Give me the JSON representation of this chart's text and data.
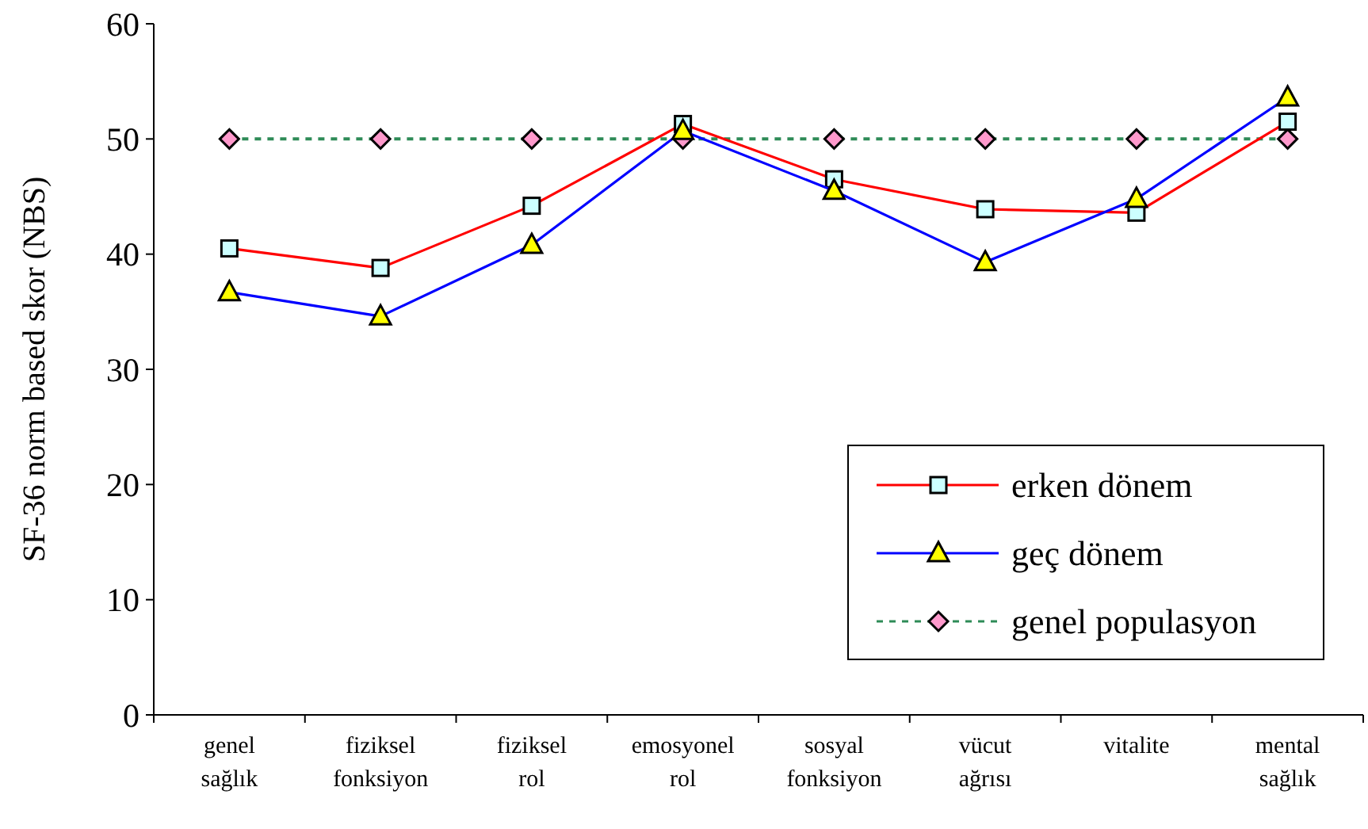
{
  "chart_data": {
    "type": "line",
    "ylabel": "SF-36 norm based skor (NBS)",
    "categories": [
      "genel\nsağlık",
      "fiziksel\nfonksiyon",
      "fiziksel\nrol",
      "emosyonel\nrol",
      "sosyal\nfonksiyon",
      "vücut\nağrısı",
      "vitalite",
      "mental\nsağlık"
    ],
    "series": [
      {
        "name": "erken dönem",
        "color": "#ff0000",
        "marker": "square",
        "line_style": "solid",
        "values": [
          40.5,
          38.8,
          44.2,
          51.3,
          46.5,
          43.9,
          43.6,
          51.5
        ]
      },
      {
        "name": "geç dönem",
        "color": "#0000ff",
        "marker": "triangle",
        "line_style": "solid",
        "values": [
          36.7,
          34.6,
          40.8,
          50.7,
          45.5,
          39.3,
          44.8,
          53.6
        ]
      },
      {
        "name": "genel populasyon",
        "color": "#2e8b57",
        "marker": "diamond",
        "line_style": "dashed",
        "values": [
          50,
          50,
          50,
          50,
          50,
          50,
          50,
          50
        ]
      }
    ],
    "ylim": [
      0,
      60
    ],
    "yticks": [
      0,
      10,
      20,
      30,
      40,
      50,
      60
    ],
    "grid": false,
    "legend": "bottom right"
  }
}
